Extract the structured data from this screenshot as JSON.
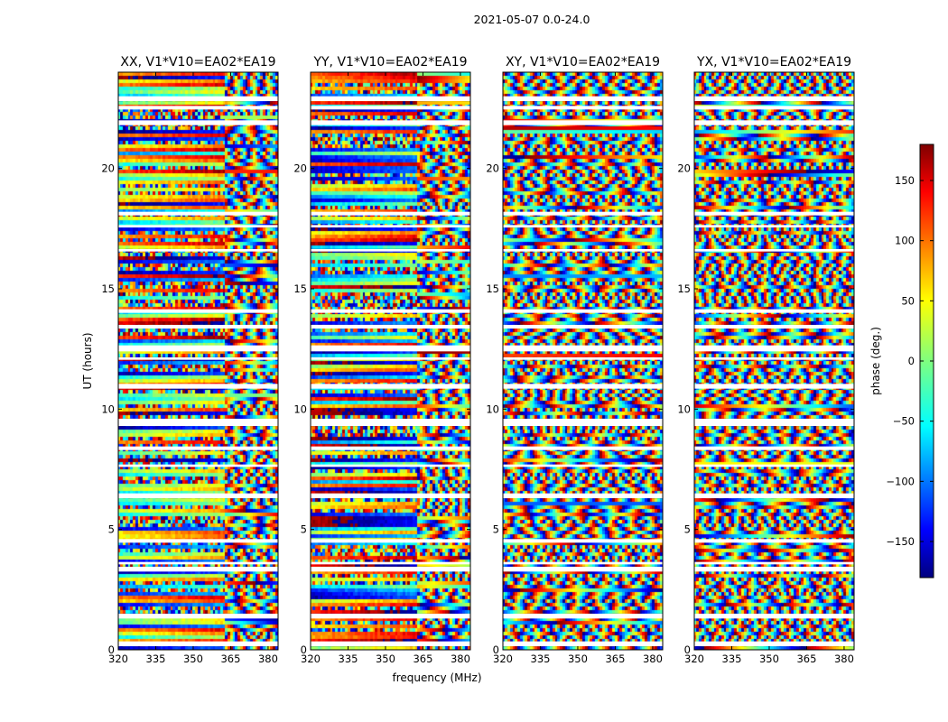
{
  "figure_title": "2021-05-07 0.0-24.0",
  "chart_data": {
    "type": "heatmap",
    "quantity": "phase",
    "panels": [
      {
        "title": "XX, V1*V10=EA02*EA19",
        "pol": "XX",
        "coherent_until_mhz": 363
      },
      {
        "title": "YY, V1*V10=EA02*EA19",
        "pol": "YY",
        "coherent_until_mhz": 363
      },
      {
        "title": "XY, V1*V10=EA02*EA19",
        "pol": "XY",
        "coherent_until_mhz": 320
      },
      {
        "title": "YX, V1*V10=EA02*EA19",
        "pol": "YX",
        "coherent_until_mhz": 320
      }
    ],
    "xlabel": "frequency (MHz)",
    "ylabel": "UT (hours)",
    "xlim": [
      320,
      384
    ],
    "ylim": [
      0,
      24
    ],
    "xticks": [
      320,
      335,
      350,
      365,
      380
    ],
    "yticks": [
      0,
      5,
      10,
      15,
      20
    ],
    "colorbar": {
      "label": "phase (deg.)",
      "range": [
        -180,
        180
      ],
      "ticks": [
        -150,
        -100,
        -50,
        0,
        50,
        100,
        150
      ],
      "tick_labels": [
        "−150",
        "−100",
        "−50",
        "0",
        "50",
        "100",
        "150"
      ],
      "colormap": "jet"
    },
    "gaps_hours": [
      [
        0.15,
        0.35
      ],
      [
        1.3,
        1.5
      ],
      [
        3.25,
        3.45
      ],
      [
        3.55,
        3.65
      ],
      [
        4.45,
        4.6
      ],
      [
        6.3,
        6.5
      ],
      [
        7.6,
        7.7
      ],
      [
        8.3,
        8.45
      ],
      [
        9.3,
        9.6
      ],
      [
        10.85,
        11.05
      ],
      [
        12.05,
        12.15
      ],
      [
        12.4,
        12.65
      ],
      [
        13.35,
        13.5
      ],
      [
        14.0,
        14.15
      ],
      [
        16.55,
        16.65
      ],
      [
        17.55,
        17.65
      ],
      [
        18.05,
        18.2
      ],
      [
        21.8,
        22.0
      ],
      [
        22.45,
        22.6
      ],
      [
        22.8,
        23.0
      ]
    ]
  }
}
